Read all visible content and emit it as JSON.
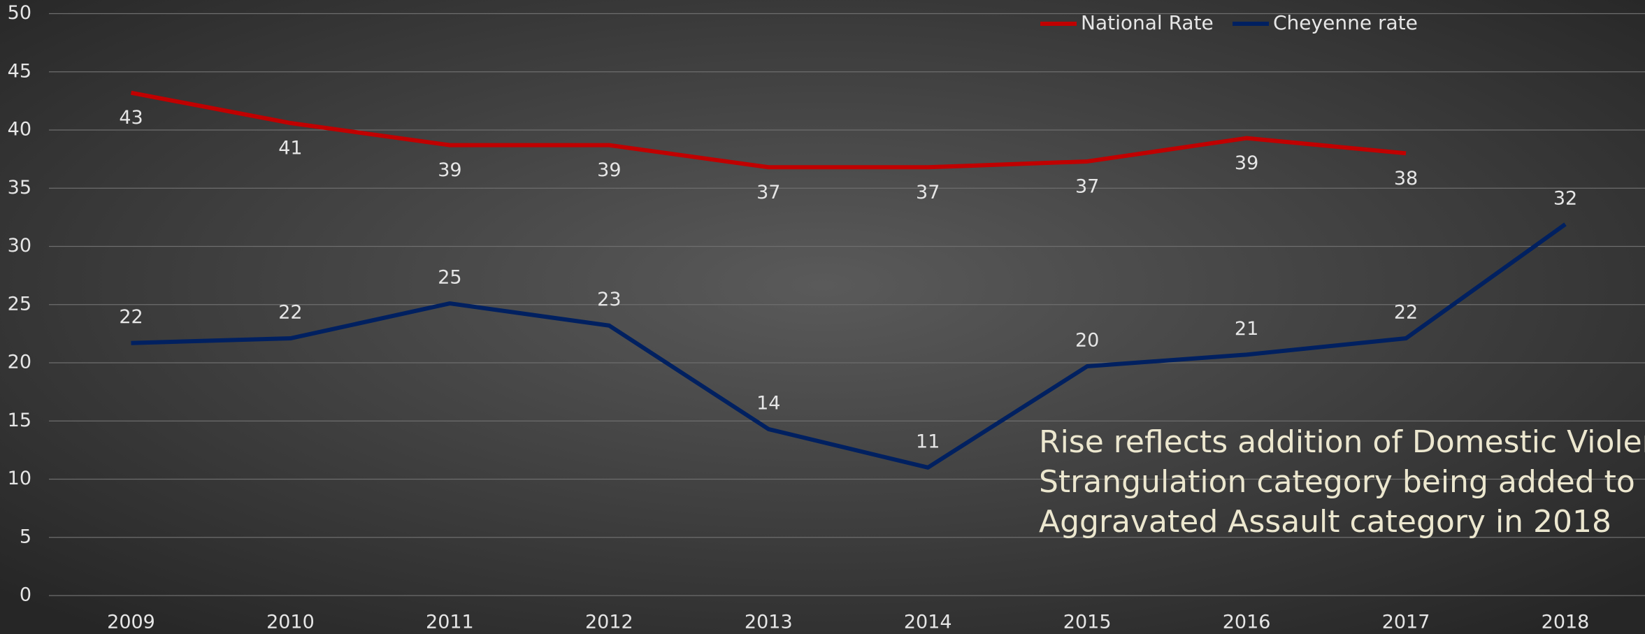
{
  "chart_data": {
    "type": "line",
    "categories": [
      "2009",
      "2010",
      "2011",
      "2012",
      "2013",
      "2014",
      "2015",
      "2016",
      "2017",
      "2018"
    ],
    "series": [
      {
        "name": "National Rate",
        "color": "#c00000",
        "values": [
          43.2,
          40.6,
          38.7,
          38.7,
          36.8,
          36.8,
          37.3,
          39.3,
          38.0,
          null
        ],
        "value_labels": [
          "43",
          "41",
          "39",
          "39",
          "37",
          "37",
          "37",
          "39",
          "38",
          null
        ]
      },
      {
        "name": "Cheyenne rate",
        "color": "#002060",
        "values": [
          21.7,
          22.1,
          25.1,
          23.2,
          14.3,
          11.0,
          19.7,
          20.7,
          22.1,
          31.9
        ],
        "value_labels": [
          "22",
          "22",
          "25",
          "23",
          "14",
          "11",
          "20",
          "21",
          "22",
          "32"
        ]
      }
    ],
    "ylim": [
      0,
      50
    ],
    "yticks": [
      0,
      5,
      10,
      15,
      20,
      25,
      30,
      35,
      40,
      45,
      50
    ],
    "grid": true,
    "legend": "top",
    "annotation": [
      "Rise reflects addition of Domestic Violence",
      "Strangulation category being added to",
      "Aggravated Assault category in 2018"
    ]
  }
}
